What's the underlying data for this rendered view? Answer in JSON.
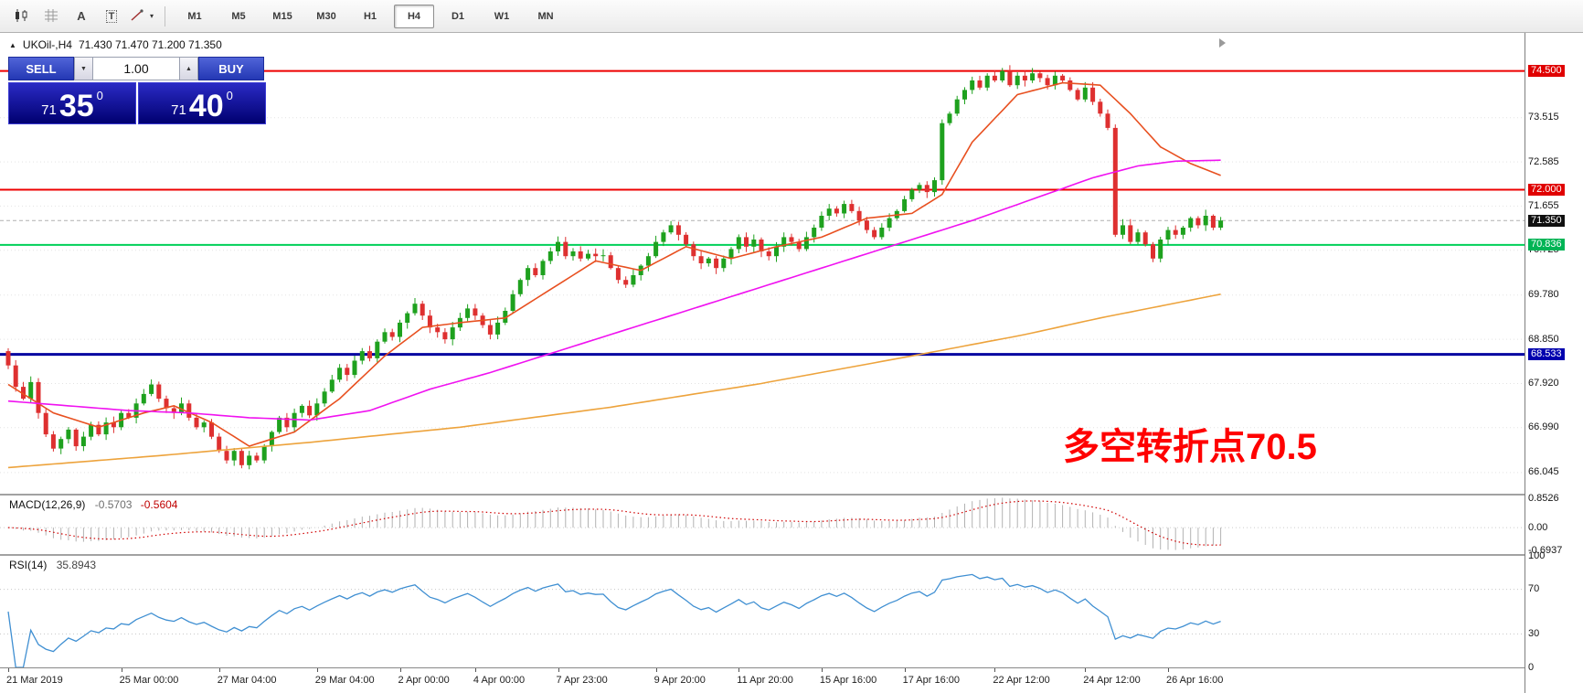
{
  "toolbar": {
    "icons": [
      {
        "name": "chart-candles-icon",
        "label": ""
      },
      {
        "name": "indicators-grid-icon",
        "label": ""
      },
      {
        "name": "text-a-icon",
        "label": "A"
      },
      {
        "name": "text-box-icon",
        "label": "T"
      },
      {
        "name": "draw-tools-icon",
        "label": ""
      }
    ],
    "timeframes": [
      {
        "label": "M1",
        "active": false
      },
      {
        "label": "M5",
        "active": false
      },
      {
        "label": "M15",
        "active": false
      },
      {
        "label": "M30",
        "active": false
      },
      {
        "label": "H1",
        "active": false
      },
      {
        "label": "H4",
        "active": true
      },
      {
        "label": "D1",
        "active": false
      },
      {
        "label": "W1",
        "active": false
      },
      {
        "label": "MN",
        "active": false
      }
    ]
  },
  "symbol_header": {
    "symbol": "UKOil-,H4",
    "ohlc": "71.430 71.470 71.200 71.350"
  },
  "trade_panel": {
    "sell_label": "SELL",
    "buy_label": "BUY",
    "volume": "1.00",
    "bid": {
      "handle": "71",
      "pips": "35",
      "sup": "0"
    },
    "ask": {
      "handle": "71",
      "pips": "40",
      "sup": "0"
    }
  },
  "annotation": {
    "text": "多空转折点70.5",
    "color": "#ff0000"
  },
  "price_axis": [
    {
      "text": "74.500",
      "price": 74.5,
      "style": "red",
      "grid": false
    },
    {
      "text": "73.515",
      "price": 73.515,
      "style": "plain",
      "grid": true
    },
    {
      "text": "72.585",
      "price": 72.585,
      "style": "plain",
      "grid": true
    },
    {
      "text": "72.000",
      "price": 72.0,
      "style": "red",
      "grid": false
    },
    {
      "text": "71.655",
      "price": 71.655,
      "style": "plain",
      "grid": true
    },
    {
      "text": "71.350",
      "price": 71.35,
      "style": "black",
      "grid": false
    },
    {
      "text": "70.725",
      "price": 70.725,
      "style": "plain",
      "grid": true
    },
    {
      "text": "70.836",
      "price": 70.836,
      "style": "green",
      "grid": false
    },
    {
      "text": "69.780",
      "price": 69.78,
      "style": "plain",
      "grid": true
    },
    {
      "text": "68.850",
      "price": 68.85,
      "style": "plain",
      "grid": true
    },
    {
      "text": "68.533",
      "price": 68.533,
      "style": "blue",
      "grid": false
    },
    {
      "text": "67.920",
      "price": 67.92,
      "style": "plain",
      "grid": true
    },
    {
      "text": "66.990",
      "price": 66.99,
      "style": "plain",
      "grid": true
    },
    {
      "text": "66.045",
      "price": 66.045,
      "style": "plain",
      "grid": true
    }
  ],
  "time_axis": [
    {
      "label": "21 Mar 2019",
      "index": 0
    },
    {
      "label": "25 Mar 00:00",
      "index": 15
    },
    {
      "label": "27 Mar 04:00",
      "index": 28
    },
    {
      "label": "29 Mar 04:00",
      "index": 41
    },
    {
      "label": "2 Apr 00:00",
      "index": 52
    },
    {
      "label": "4 Apr 00:00",
      "index": 62
    },
    {
      "label": "7 Apr 23:00",
      "index": 73
    },
    {
      "label": "9 Apr 20:00",
      "index": 86
    },
    {
      "label": "11 Apr 20:00",
      "index": 97
    },
    {
      "label": "15 Apr 16:00",
      "index": 108
    },
    {
      "label": "17 Apr 16:00",
      "index": 119
    },
    {
      "label": "22 Apr 12:00",
      "index": 131
    },
    {
      "label": "24 Apr 12:00",
      "index": 143
    },
    {
      "label": "26 Apr 16:00",
      "index": 154
    }
  ],
  "macd_panel": {
    "title": "MACD(12,26,9)",
    "value_main": "-0.5703",
    "value_signal": "-0.5604",
    "params": [
      12,
      26,
      9
    ],
    "axis": [
      {
        "text": "0.8526",
        "value": 0.8526
      },
      {
        "text": "0.00",
        "value": 0.0
      },
      {
        "text": "-0.6937",
        "value": -0.6937
      }
    ],
    "range": [
      -0.78,
      0.95
    ]
  },
  "rsi_panel": {
    "title": "RSI(14)",
    "value": "35.8943",
    "period": 14,
    "axis": [
      {
        "text": "100",
        "value": 100
      },
      {
        "text": "70",
        "value": 70
      },
      {
        "text": "30",
        "value": 30
      },
      {
        "text": "0",
        "value": 0
      }
    ],
    "range": [
      0,
      100
    ],
    "level_lines": [
      70,
      30
    ]
  },
  "chart_data": {
    "type": "candlestick",
    "title": "UKOil- H4 candlestick chart, 21 Mar 2019 - 26 Apr 2019",
    "price_range": [
      65.6,
      75.3
    ],
    "current_price": 71.35,
    "open_first": 68.6,
    "bull_color": "#1ea11e",
    "bear_color": "#de3030",
    "closes": [
      68.3,
      67.85,
      67.6,
      67.95,
      67.3,
      66.85,
      66.55,
      66.75,
      66.95,
      66.6,
      66.8,
      67.05,
      66.85,
      67.1,
      67.0,
      67.3,
      67.2,
      67.5,
      67.7,
      67.9,
      67.6,
      67.4,
      67.3,
      67.5,
      67.2,
      67.0,
      67.1,
      66.8,
      66.5,
      66.3,
      66.5,
      66.2,
      66.4,
      66.3,
      66.6,
      66.9,
      67.2,
      67.0,
      67.3,
      67.45,
      67.25,
      67.5,
      67.75,
      68.0,
      68.25,
      68.1,
      68.4,
      68.6,
      68.45,
      68.8,
      69.0,
      68.9,
      69.2,
      69.4,
      69.6,
      69.35,
      69.1,
      69.0,
      68.85,
      69.1,
      69.3,
      69.5,
      69.35,
      69.15,
      68.95,
      69.2,
      69.45,
      69.8,
      70.1,
      70.35,
      70.2,
      70.5,
      70.7,
      70.9,
      70.6,
      70.7,
      70.55,
      70.65,
      70.6,
      70.62,
      70.35,
      70.1,
      70.0,
      70.2,
      70.4,
      70.6,
      70.9,
      71.1,
      71.25,
      71.05,
      70.85,
      70.6,
      70.45,
      70.55,
      70.35,
      70.55,
      70.75,
      71.0,
      70.8,
      70.95,
      70.7,
      70.6,
      70.8,
      71.0,
      70.9,
      70.75,
      71.0,
      71.2,
      71.45,
      71.6,
      71.5,
      71.7,
      71.55,
      71.35,
      71.15,
      71.0,
      71.2,
      71.4,
      71.55,
      71.8,
      72.0,
      72.1,
      71.95,
      72.2,
      73.4,
      73.6,
      73.9,
      74.1,
      74.3,
      74.15,
      74.4,
      74.3,
      74.5,
      74.2,
      74.4,
      74.3,
      74.45,
      74.35,
      74.2,
      74.4,
      74.3,
      74.1,
      73.9,
      74.15,
      73.85,
      73.6,
      73.3,
      71.05,
      71.25,
      70.9,
      71.1,
      70.85,
      70.55,
      70.95,
      71.15,
      71.05,
      71.2,
      71.4,
      71.25,
      71.45,
      71.2,
      71.35
    ],
    "levels": [
      {
        "price": 74.5,
        "color": "#ee0000",
        "width": 2
      },
      {
        "price": 72.0,
        "color": "#ee0000",
        "width": 2
      },
      {
        "price": 70.836,
        "color": "#00d058",
        "width": 2
      },
      {
        "price": 68.533,
        "color": "#0000a0",
        "width": 3
      }
    ],
    "moving_averages": [
      {
        "name": "ma-fast",
        "color": "#e85020",
        "anchors": [
          [
            0,
            67.9
          ],
          [
            6,
            67.3
          ],
          [
            12,
            67.0
          ],
          [
            18,
            67.3
          ],
          [
            22,
            67.45
          ],
          [
            27,
            67.1
          ],
          [
            32,
            66.6
          ],
          [
            38,
            66.9
          ],
          [
            44,
            67.6
          ],
          [
            50,
            68.5
          ],
          [
            55,
            69.1
          ],
          [
            60,
            69.2
          ],
          [
            66,
            69.3
          ],
          [
            72,
            69.9
          ],
          [
            78,
            70.5
          ],
          [
            84,
            70.3
          ],
          [
            90,
            70.8
          ],
          [
            96,
            70.55
          ],
          [
            102,
            70.8
          ],
          [
            108,
            71.0
          ],
          [
            114,
            71.4
          ],
          [
            120,
            71.5
          ],
          [
            124,
            71.9
          ],
          [
            128,
            73.0
          ],
          [
            134,
            74.0
          ],
          [
            140,
            74.25
          ],
          [
            145,
            74.2
          ],
          [
            149,
            73.6
          ],
          [
            153,
            72.9
          ],
          [
            157,
            72.55
          ],
          [
            161,
            72.3
          ]
        ]
      },
      {
        "name": "ma-medium",
        "color": "#f012f0",
        "anchors": [
          [
            0,
            67.55
          ],
          [
            8,
            67.45
          ],
          [
            16,
            67.35
          ],
          [
            24,
            67.3
          ],
          [
            32,
            67.2
          ],
          [
            40,
            67.15
          ],
          [
            48,
            67.35
          ],
          [
            56,
            67.8
          ],
          [
            64,
            68.15
          ],
          [
            72,
            68.55
          ],
          [
            80,
            68.95
          ],
          [
            88,
            69.35
          ],
          [
            96,
            69.75
          ],
          [
            104,
            70.15
          ],
          [
            112,
            70.55
          ],
          [
            120,
            70.95
          ],
          [
            128,
            71.35
          ],
          [
            136,
            71.8
          ],
          [
            144,
            72.25
          ],
          [
            150,
            72.5
          ],
          [
            155,
            72.6
          ],
          [
            161,
            72.62
          ]
        ]
      },
      {
        "name": "ma-slow",
        "color": "#eda33c",
        "anchors": [
          [
            0,
            66.15
          ],
          [
            20,
            66.4
          ],
          [
            40,
            66.68
          ],
          [
            60,
            67.0
          ],
          [
            80,
            67.42
          ],
          [
            100,
            67.92
          ],
          [
            120,
            68.5
          ],
          [
            135,
            68.95
          ],
          [
            145,
            69.3
          ],
          [
            153,
            69.55
          ],
          [
            161,
            69.8
          ]
        ]
      }
    ]
  }
}
